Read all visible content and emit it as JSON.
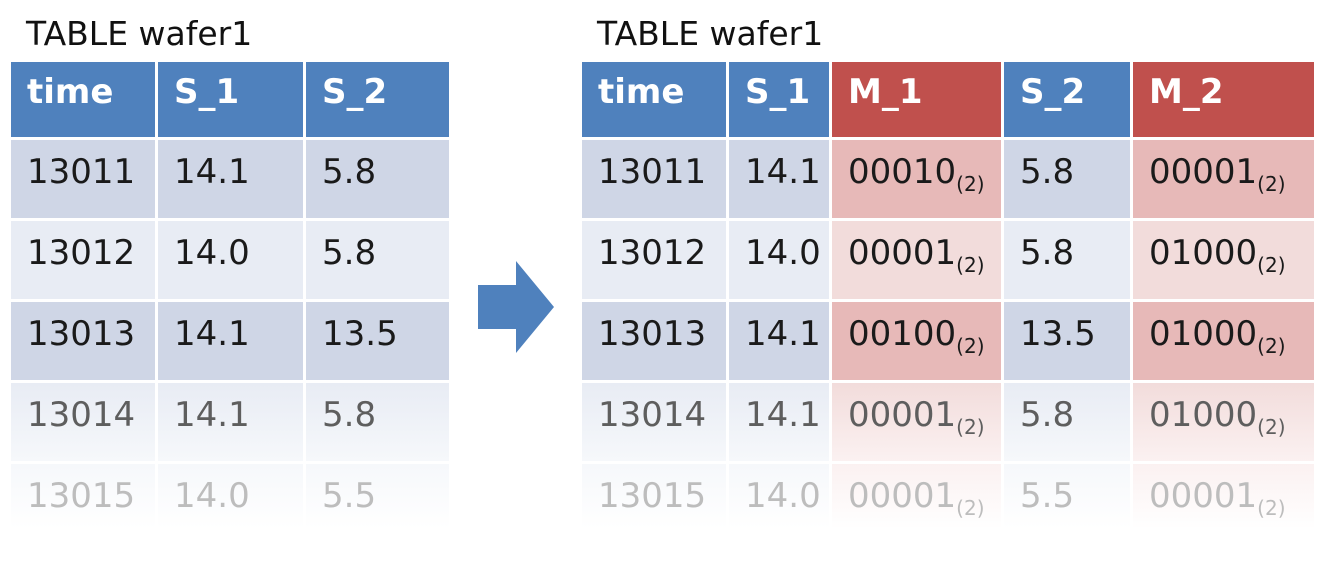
{
  "left": {
    "title": "TABLE wafer1",
    "headers": [
      "time",
      "S_1",
      "S_2"
    ],
    "rows": [
      [
        "13011",
        "14.1",
        "5.8"
      ],
      [
        "13012",
        "14.0",
        "5.8"
      ],
      [
        "13013",
        "14.1",
        "13.5"
      ],
      [
        "13014",
        "14.1",
        "5.8"
      ],
      [
        "13015",
        "14.0",
        "5.5"
      ]
    ]
  },
  "right": {
    "title": "TABLE wafer1",
    "headers": [
      "time",
      "S_1",
      "M_1",
      "S_2",
      "M_2"
    ],
    "rows": [
      [
        "13011",
        "14.1",
        "00010",
        "5.8",
        "00001"
      ],
      [
        "13012",
        "14.0",
        "00001",
        "5.8",
        "01000"
      ],
      [
        "13013",
        "14.1",
        "00100",
        "13.5",
        "01000"
      ],
      [
        "13014",
        "14.1",
        "00001",
        "5.8",
        "01000"
      ],
      [
        "13015",
        "14.0",
        "00001",
        "5.5",
        "00001"
      ]
    ],
    "subscript": "(2)"
  },
  "colors": {
    "header_blue": "#4f81bd",
    "header_red": "#c0504d",
    "arrow": "#4f81bd"
  },
  "icons": {
    "arrow": "right-arrow-icon"
  }
}
